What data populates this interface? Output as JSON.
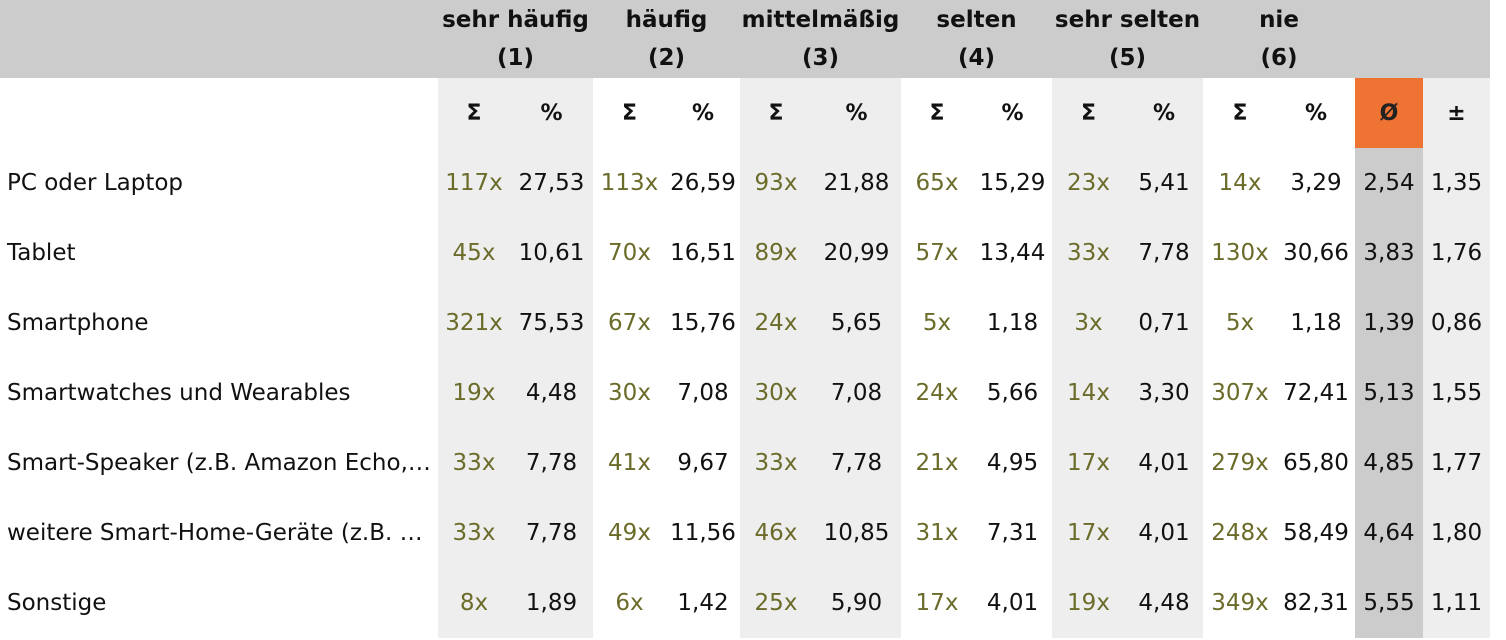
{
  "groups": [
    {
      "name": "sehr häufig",
      "code": "(1)"
    },
    {
      "name": "häufig",
      "code": "(2)"
    },
    {
      "name": "mittelmäßig",
      "code": "(3)"
    },
    {
      "name": "selten",
      "code": "(4)"
    },
    {
      "name": "sehr selten",
      "code": "(5)"
    },
    {
      "name": "nie",
      "code": "(6)"
    }
  ],
  "sub": {
    "sum": "Σ",
    "pct": "%",
    "avg": "Ø",
    "sd": "±"
  },
  "rows": [
    {
      "label": "PC oder Laptop",
      "cells": [
        [
          "117x",
          "27,53"
        ],
        [
          "113x",
          "26,59"
        ],
        [
          "93x",
          "21,88"
        ],
        [
          "65x",
          "15,29"
        ],
        [
          "23x",
          "5,41"
        ],
        [
          "14x",
          "3,29"
        ]
      ],
      "avg": "2,54",
      "sd": "1,35"
    },
    {
      "label": "Tablet",
      "cells": [
        [
          "45x",
          "10,61"
        ],
        [
          "70x",
          "16,51"
        ],
        [
          "89x",
          "20,99"
        ],
        [
          "57x",
          "13,44"
        ],
        [
          "33x",
          "7,78"
        ],
        [
          "130x",
          "30,66"
        ]
      ],
      "avg": "3,83",
      "sd": "1,76"
    },
    {
      "label": "Smartphone",
      "cells": [
        [
          "321x",
          "75,53"
        ],
        [
          "67x",
          "15,76"
        ],
        [
          "24x",
          "5,65"
        ],
        [
          "5x",
          "1,18"
        ],
        [
          "3x",
          "0,71"
        ],
        [
          "5x",
          "1,18"
        ]
      ],
      "avg": "1,39",
      "sd": "0,86"
    },
    {
      "label": "Smartwatches und Wearables",
      "cells": [
        [
          "19x",
          "4,48"
        ],
        [
          "30x",
          "7,08"
        ],
        [
          "30x",
          "7,08"
        ],
        [
          "24x",
          "5,66"
        ],
        [
          "14x",
          "3,30"
        ],
        [
          "307x",
          "72,41"
        ]
      ],
      "avg": "5,13",
      "sd": "1,55"
    },
    {
      "label": "Smart-Speaker (z.B. Amazon Echo,…",
      "cells": [
        [
          "33x",
          "7,78"
        ],
        [
          "41x",
          "9,67"
        ],
        [
          "33x",
          "7,78"
        ],
        [
          "21x",
          "4,95"
        ],
        [
          "17x",
          "4,01"
        ],
        [
          "279x",
          "65,80"
        ]
      ],
      "avg": "4,85",
      "sd": "1,77"
    },
    {
      "label": "weitere Smart-Home-Geräte (z.B. …",
      "cells": [
        [
          "33x",
          "7,78"
        ],
        [
          "49x",
          "11,56"
        ],
        [
          "46x",
          "10,85"
        ],
        [
          "31x",
          "7,31"
        ],
        [
          "17x",
          "4,01"
        ],
        [
          "248x",
          "58,49"
        ]
      ],
      "avg": "4,64",
      "sd": "1,80"
    },
    {
      "label": "Sonstige",
      "cells": [
        [
          "8x",
          "1,89"
        ],
        [
          "6x",
          "1,42"
        ],
        [
          "25x",
          "5,90"
        ],
        [
          "17x",
          "4,01"
        ],
        [
          "19x",
          "4,48"
        ],
        [
          "349x",
          "82,31"
        ]
      ],
      "avg": "5,55",
      "sd": "1,11"
    }
  ]
}
